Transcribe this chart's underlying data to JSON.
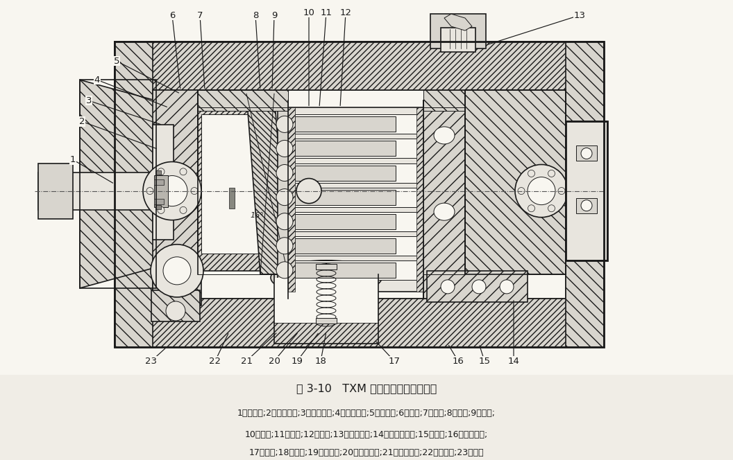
{
  "title": "图 3-10   TXM 系列液压马达内部结构",
  "caption_line1": "1－输出轴;2－旋转油封;3－轴用挡圈;4－孔用挡圈;5－密封圈;6－轴承;7－壳体;8－斜盘;9－滑靴;",
  "caption_line2": "10－柱塞;11－顶杆;12－缸体;13－配流端盖;14－通油接头块;15－轴承;16－孔用挡圈;",
  "caption_line3": "17－垫片;18－弹簧;19－弹簧座;20－滑靴压盘;21－推压球铰;22－定位销;23－挡盖",
  "bg_color": "#f0ede6",
  "text_color": "#1a1a1a",
  "fig_width": 10.56,
  "fig_height": 6.64,
  "dpi": 100,
  "title_fontsize": 11.5,
  "caption_fontsize": 9.0,
  "lc": "#1a1a1a",
  "lw_main": 1.2,
  "lw_thick": 2.0,
  "lw_thin": 0.7,
  "hatch_color": "#444444",
  "drawing_bg": "#f8f6f0"
}
